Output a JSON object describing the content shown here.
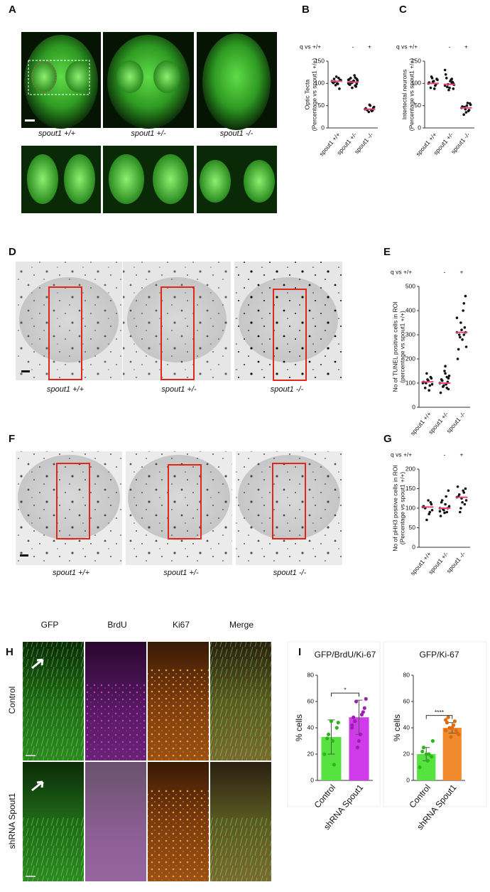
{
  "figure": {
    "letters": [
      "A",
      "B",
      "C",
      "D",
      "E",
      "F",
      "G",
      "H",
      "I"
    ],
    "a_captions": [
      "spout1 +/+",
      "spout1 +/-",
      "spout1 -/-"
    ],
    "d_captions": [
      "spout1 +/+",
      "spout1 +/-",
      "spout1 -/-"
    ],
    "f_captions": [
      "spout1 +/+",
      "spout1 +/-",
      "spout1 -/-"
    ],
    "h_columns": [
      "GFP",
      "BrdU",
      "Ki67",
      "Merge"
    ],
    "h_rows": [
      "Control",
      "shRNA Spout1"
    ]
  },
  "chart_data": [
    {
      "type": "strip",
      "header": "q vs +/+",
      "header_marks": [
        null,
        "-",
        "+"
      ],
      "ylabel": [
        "Optic Tecta",
        "(Percentage vs spout1 +/+)"
      ],
      "categories": [
        "spout1 +/+",
        "spout1 +/-",
        "spout1 -/-"
      ],
      "values": [
        [
          105,
          108,
          112,
          100,
          96,
          110,
          103,
          107,
          88,
          99,
          115,
          104,
          101
        ],
        [
          100,
          110,
          95,
          105,
          102,
          112,
          98,
          107,
          93,
          118,
          104,
          101,
          97,
          108,
          99,
          113,
          106,
          90,
          103,
          109
        ],
        [
          42,
          45,
          38,
          50,
          36,
          40,
          44,
          47,
          39,
          41,
          52
        ]
      ],
      "means": [
        105,
        103,
        42
      ],
      "color": "#111111",
      "mean_color": "#e8417a",
      "ylim": [
        0,
        150
      ],
      "yticks": [
        0,
        50,
        100,
        150
      ]
    },
    {
      "type": "strip",
      "header": "q vs +/+",
      "header_marks": [
        null,
        "-",
        "+"
      ],
      "ylabel": [
        "Intertectal neurons",
        "(Percentage vs spout1 +/+)"
      ],
      "categories": [
        "spout1 +/+",
        "spout1 +/-",
        "spout1 -/-"
      ],
      "values": [
        [
          100,
          110,
          95,
          105,
          112,
          90,
          102,
          108,
          98,
          88,
          104,
          115
        ],
        [
          95,
          100,
          110,
          105,
          85,
          92,
          120,
          97,
          103,
          108,
          90,
          98,
          112,
          130,
          88,
          100
        ],
        [
          45,
          55,
          38,
          50,
          42,
          30,
          48,
          52,
          40,
          56,
          35,
          47
        ]
      ],
      "means": [
        100,
        98,
        45
      ],
      "color": "#111111",
      "mean_color": "#e8417a",
      "ylim": [
        0,
        150
      ],
      "yticks": [
        0,
        50,
        100,
        150
      ]
    },
    {
      "type": "strip",
      "header": "q vs +/+",
      "header_marks": [
        null,
        "-",
        "+"
      ],
      "ylabel": [
        "No of TUNEL positive cells in ROI",
        "(percentage vs spout1 +/+)"
      ],
      "categories": [
        "spout1 +/+",
        "spout1 +/-",
        "spout1 -/-"
      ],
      "values": [
        [
          100,
          120,
          90,
          110,
          140,
          80,
          105,
          95,
          125,
          70,
          115,
          100
        ],
        [
          100,
          120,
          80,
          140,
          90,
          110,
          60,
          130,
          105,
          95,
          150,
          85,
          115,
          100,
          75,
          125,
          170
        ],
        [
          310,
          460,
          430,
          280,
          350,
          300,
          200,
          250,
          330,
          400,
          320,
          290,
          240,
          370,
          310,
          300
        ]
      ],
      "means": [
        105,
        100,
        310
      ],
      "color": "#111111",
      "mean_color": "#e8417a",
      "ylim": [
        0,
        500
      ],
      "yticks": [
        0,
        100,
        200,
        300,
        400,
        500
      ]
    },
    {
      "type": "strip",
      "header": "q vs +/+",
      "header_marks": [
        null,
        "-",
        "+"
      ],
      "ylabel": [
        "No of pHH3 positive cells in ROI",
        "(Percentage vs spout1 +/+)"
      ],
      "categories": [
        "spout1 +/+",
        "spout1 +/-",
        "spout1 -/-"
      ],
      "values": [
        [
          103,
          110,
          90,
          120,
          70,
          100,
          105,
          95,
          115,
          85
        ],
        [
          100,
          145,
          90,
          110,
          95,
          120,
          80,
          105,
          100,
          130,
          88,
          98,
          115,
          92
        ],
        [
          128,
          150,
          140,
          115,
          100,
          135,
          155,
          120,
          110,
          145,
          125,
          90,
          130
        ]
      ],
      "means": [
        103,
        100,
        128
      ],
      "color": "#111111",
      "mean_color": "#e8417a",
      "ylim": [
        0,
        200
      ],
      "yticks": [
        0,
        50,
        100,
        150,
        200
      ]
    },
    {
      "type": "bar",
      "title": "GFP/BrdU/Ki-67",
      "ylabel": [
        "% cells"
      ],
      "categories": [
        "Control",
        "shRNA Spout1"
      ],
      "values": [
        33,
        48
      ],
      "errors": [
        13,
        13
      ],
      "colors": [
        "#57e33f",
        "#cf3be8"
      ],
      "point_colors": [
        "#2fb51c",
        "#9a1fb0"
      ],
      "points": [
        [
          20,
          12,
          35,
          44,
          30,
          32,
          40,
          45
        ],
        [
          40,
          50,
          60,
          62,
          35,
          45,
          55,
          30,
          48,
          52,
          25,
          42
        ]
      ],
      "significance": "*",
      "ylim": [
        0,
        80
      ],
      "yticks": [
        0,
        20,
        40,
        60,
        80
      ]
    },
    {
      "type": "bar",
      "title": "GFP/Ki-67",
      "ylabel": [
        "% cells"
      ],
      "categories": [
        "Control",
        "shRNA Spout1"
      ],
      "values": [
        20,
        40
      ],
      "errors": [
        5,
        4
      ],
      "colors": [
        "#57e33f",
        "#f08a2c"
      ],
      "point_colors": [
        "#2fb51c",
        "#e06a10"
      ],
      "points": [
        [
          10,
          20,
          25,
          30,
          15,
          22,
          18,
          20
        ],
        [
          38,
          45,
          40,
          35,
          42,
          48,
          36,
          40,
          44,
          38,
          33,
          46
        ]
      ],
      "significance": "****",
      "ylim": [
        0,
        80
      ],
      "yticks": [
        0,
        20,
        40,
        60,
        80
      ]
    }
  ]
}
